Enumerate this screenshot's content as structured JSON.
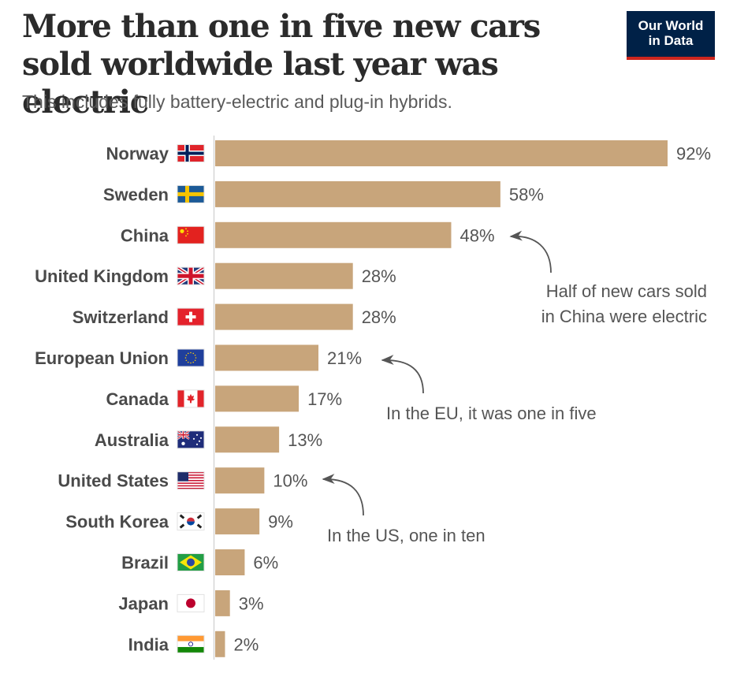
{
  "header": {
    "title": "More than one in five new cars sold worldwide last year was electric",
    "subtitle": "This includes fully battery-electric and plug-in hybrids.",
    "logo_line1": "Our World",
    "logo_line2": "in Data"
  },
  "colors": {
    "bar": "#c8a57b",
    "logo_bg": "#002147",
    "logo_accent": "#ce261e"
  },
  "chart_data": {
    "type": "bar",
    "orientation": "horizontal",
    "title": "More than one in five new cars sold worldwide last year was electric",
    "subtitle": "This includes fully battery-electric and plug-in hybrids.",
    "xlabel": "",
    "ylabel": "",
    "unit": "%",
    "xlim": [
      0,
      92
    ],
    "grid": false,
    "categories": [
      "Norway",
      "Sweden",
      "China",
      "United Kingdom",
      "Switzerland",
      "European Union",
      "Canada",
      "Australia",
      "United States",
      "South Korea",
      "Brazil",
      "Japan",
      "India"
    ],
    "flags": [
      "norway-flag",
      "sweden-flag",
      "china-flag",
      "uk-flag",
      "switzerland-flag",
      "eu-flag",
      "canada-flag",
      "australia-flag",
      "us-flag",
      "south-korea-flag",
      "brazil-flag",
      "japan-flag",
      "india-flag"
    ],
    "values": [
      92,
      58,
      48,
      28,
      28,
      21,
      17,
      13,
      10,
      9,
      6,
      3,
      2
    ],
    "value_labels": [
      "92%",
      "58%",
      "48%",
      "28%",
      "28%",
      "21%",
      "17%",
      "13%",
      "10%",
      "9%",
      "6%",
      "3%",
      "2%"
    ],
    "annotations": [
      {
        "target": "China",
        "lines": [
          "Half of new cars sold",
          "in China were electric"
        ]
      },
      {
        "target": "European Union",
        "lines": [
          "In the EU, it was one in five"
        ]
      },
      {
        "target": "United States",
        "lines": [
          "In the US, one in ten"
        ]
      }
    ]
  }
}
